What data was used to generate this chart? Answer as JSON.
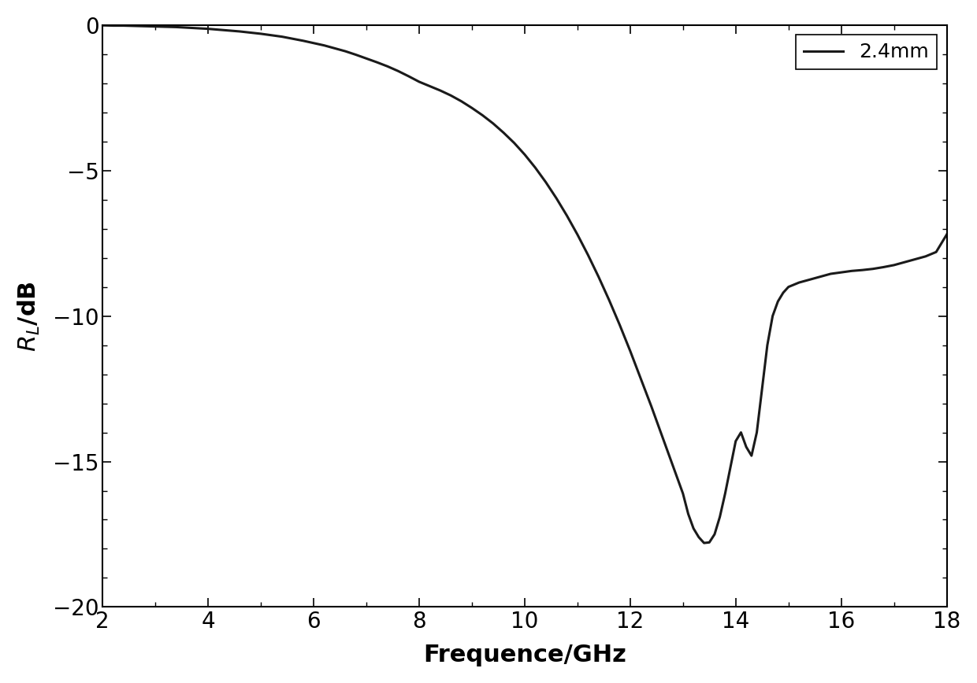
{
  "title": "",
  "xlabel": "Frequence/GHz",
  "ylabel": "$R_L$/dB",
  "legend_label": "2.4mm",
  "line_color": "#1a1a1a",
  "line_width": 2.2,
  "xlim": [
    2,
    18
  ],
  "ylim": [
    -20,
    0
  ],
  "xticks": [
    2,
    4,
    6,
    8,
    10,
    12,
    14,
    16,
    18
  ],
  "yticks": [
    0,
    -5,
    -10,
    -15,
    -20
  ],
  "background_color": "#ffffff",
  "x": [
    2.0,
    2.2,
    2.4,
    2.6,
    2.8,
    3.0,
    3.2,
    3.4,
    3.6,
    3.8,
    4.0,
    4.2,
    4.4,
    4.6,
    4.8,
    5.0,
    5.2,
    5.4,
    5.6,
    5.8,
    6.0,
    6.2,
    6.4,
    6.6,
    6.8,
    7.0,
    7.2,
    7.4,
    7.6,
    7.8,
    8.0,
    8.2,
    8.4,
    8.6,
    8.8,
    9.0,
    9.2,
    9.4,
    9.6,
    9.8,
    10.0,
    10.2,
    10.4,
    10.6,
    10.8,
    11.0,
    11.2,
    11.4,
    11.6,
    11.8,
    12.0,
    12.2,
    12.4,
    12.6,
    12.8,
    13.0,
    13.1,
    13.2,
    13.3,
    13.4,
    13.5,
    13.6,
    13.7,
    13.8,
    13.9,
    14.0,
    14.1,
    14.2,
    14.3,
    14.4,
    14.5,
    14.6,
    14.7,
    14.8,
    14.9,
    15.0,
    15.2,
    15.4,
    15.6,
    15.8,
    16.0,
    16.2,
    16.4,
    16.6,
    16.8,
    17.0,
    17.2,
    17.4,
    17.6,
    17.8,
    18.0
  ],
  "y": [
    -0.01,
    -0.02,
    -0.02,
    -0.03,
    -0.04,
    -0.05,
    -0.06,
    -0.07,
    -0.09,
    -0.11,
    -0.13,
    -0.16,
    -0.19,
    -0.22,
    -0.26,
    -0.3,
    -0.35,
    -0.4,
    -0.47,
    -0.54,
    -0.62,
    -0.7,
    -0.8,
    -0.9,
    -1.02,
    -1.15,
    -1.28,
    -1.42,
    -1.58,
    -1.76,
    -1.95,
    -2.1,
    -2.25,
    -2.42,
    -2.62,
    -2.85,
    -3.1,
    -3.38,
    -3.7,
    -4.05,
    -4.45,
    -4.9,
    -5.4,
    -5.95,
    -6.55,
    -7.2,
    -7.9,
    -8.65,
    -9.45,
    -10.3,
    -11.2,
    -12.15,
    -13.1,
    -14.1,
    -15.1,
    -16.1,
    -16.8,
    -17.3,
    -17.6,
    -17.8,
    -17.78,
    -17.5,
    -16.9,
    -16.1,
    -15.2,
    -14.3,
    -14.0,
    -14.5,
    -14.8,
    -14.0,
    -12.5,
    -11.0,
    -10.0,
    -9.5,
    -9.2,
    -9.0,
    -8.85,
    -8.75,
    -8.65,
    -8.55,
    -8.5,
    -8.45,
    -8.42,
    -8.38,
    -8.32,
    -8.25,
    -8.15,
    -8.05,
    -7.95,
    -7.8,
    -7.2
  ]
}
